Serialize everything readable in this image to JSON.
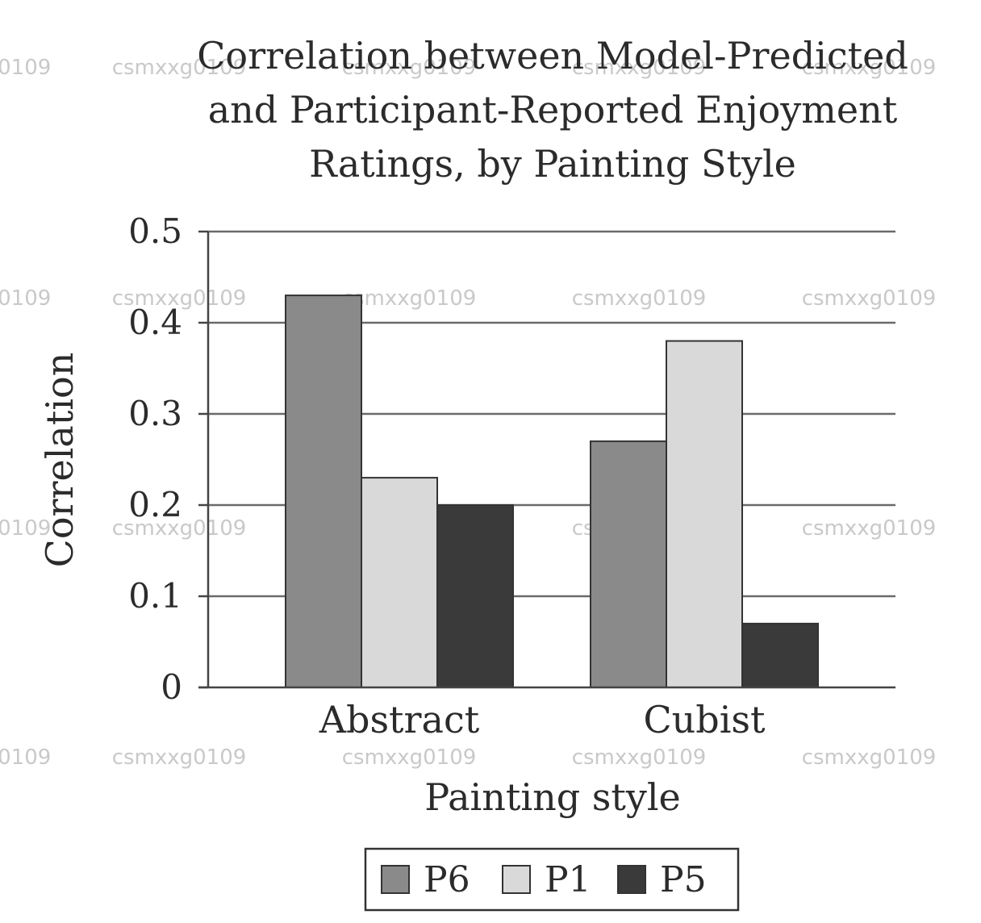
{
  "chart_data": {
    "type": "bar",
    "title_lines": [
      "Correlation between Model-Predicted",
      "and Participant-Reported Enjoyment",
      "Ratings, by Painting Style"
    ],
    "xlabel": "Painting style",
    "ylabel": "Correlation",
    "categories": [
      "Abstract",
      "Cubist"
    ],
    "series": [
      {
        "name": "P6",
        "values": [
          0.43,
          0.27
        ],
        "color": "#8a8a8a"
      },
      {
        "name": "P1",
        "values": [
          0.23,
          0.38
        ],
        "color": "#d9d9d9"
      },
      {
        "name": "P5",
        "values": [
          0.2,
          0.07
        ],
        "color": "#3a3a3a"
      }
    ],
    "ylim": [
      0,
      0.5
    ],
    "yticks": [
      0,
      0.1,
      0.2,
      0.3,
      0.4,
      0.5
    ],
    "ytick_labels": [
      "0",
      "0.1",
      "0.2",
      "0.3",
      "0.4",
      "0.5"
    ],
    "grid": true,
    "legend_position": "bottom-center",
    "watermark": "csmxxg0109"
  }
}
